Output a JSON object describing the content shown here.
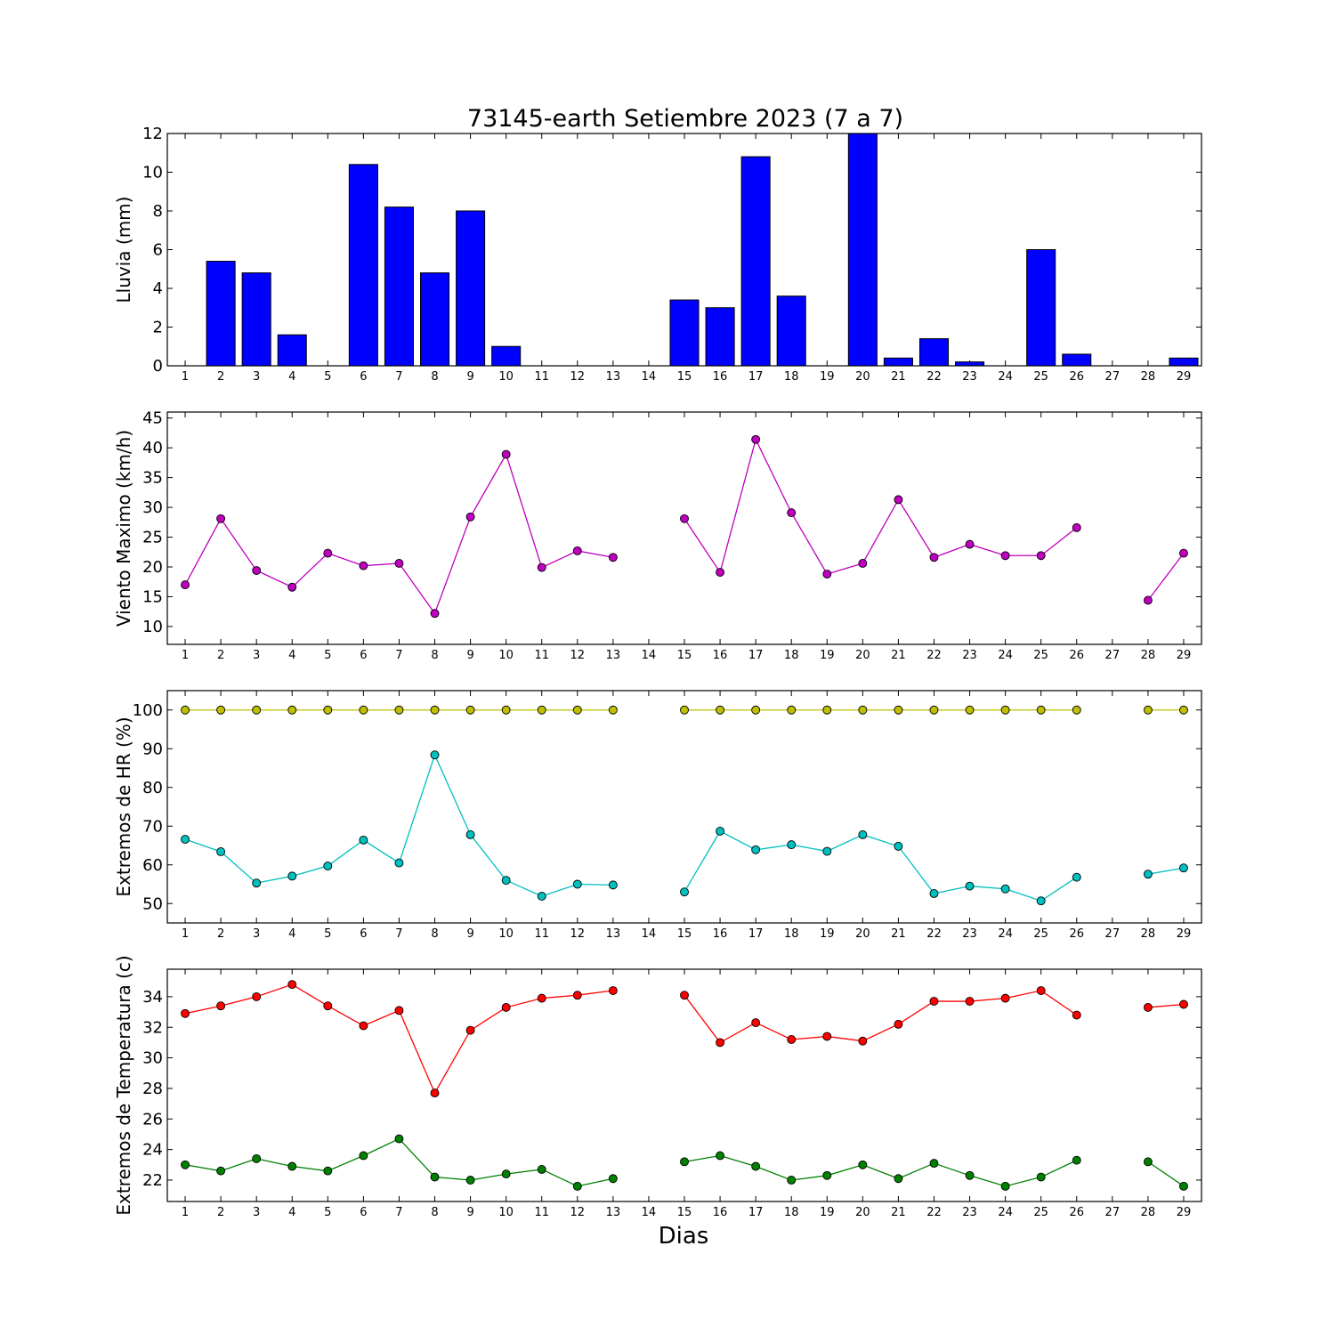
{
  "title": "73145-earth Setiembre 2023  (7 a 7)",
  "xlabel": "Dias",
  "chart_data": [
    {
      "type": "bar",
      "ylabel": "Lluvia (mm)",
      "ylim": [
        0,
        12
      ],
      "yticks": [
        0,
        2,
        4,
        6,
        8,
        10,
        12
      ],
      "x": [
        1,
        2,
        3,
        4,
        5,
        6,
        7,
        8,
        9,
        10,
        11,
        12,
        13,
        14,
        15,
        16,
        17,
        18,
        19,
        20,
        21,
        22,
        23,
        24,
        25,
        26,
        27,
        28,
        29
      ],
      "xtick_labels": [
        "1",
        "2",
        "3",
        "4",
        "5",
        "6",
        "7",
        "8",
        "9",
        "10",
        "11",
        "12",
        "13",
        "14",
        "15",
        "16",
        "17",
        "18",
        "19",
        "20",
        "21",
        "22",
        "23",
        "24",
        "25",
        "26",
        "27",
        "28",
        "29"
      ],
      "series": [
        {
          "color": "#0000ff",
          "values": [
            0,
            5.4,
            4.8,
            1.6,
            0,
            10.4,
            8.2,
            4.8,
            8.0,
            1.0,
            0,
            0,
            0,
            0,
            3.4,
            3.0,
            10.8,
            3.6,
            0,
            12.0,
            0.4,
            1.4,
            0.2,
            0,
            6.0,
            0.6,
            0,
            0,
            0.4
          ]
        }
      ]
    },
    {
      "type": "line",
      "ylabel": "Viento Maximo (km/h)",
      "ylim": [
        7,
        46
      ],
      "yticks": [
        10,
        15,
        20,
        25,
        30,
        35,
        40,
        45
      ],
      "x": [
        1,
        2,
        3,
        4,
        5,
        6,
        7,
        8,
        9,
        10,
        11,
        12,
        13,
        14,
        15,
        16,
        17,
        18,
        19,
        20,
        21,
        22,
        23,
        24,
        25,
        26,
        27,
        28,
        29
      ],
      "xtick_labels": [
        "1",
        "2",
        "3",
        "4",
        "5",
        "6",
        "7",
        "8",
        "9",
        "10",
        "11",
        "12",
        "13",
        "14",
        "15",
        "16",
        "17",
        "18",
        "19",
        "20",
        "21",
        "22",
        "23",
        "24",
        "25",
        "26",
        "27",
        "28",
        "29"
      ],
      "series": [
        {
          "color": "#bf00bf",
          "values": [
            17.0,
            28.1,
            19.4,
            16.6,
            22.3,
            20.2,
            20.6,
            12.2,
            28.4,
            38.9,
            19.9,
            22.7,
            21.6,
            null,
            28.1,
            19.1,
            41.4,
            29.1,
            18.8,
            20.6,
            31.3,
            21.6,
            23.8,
            21.9,
            21.9,
            26.6,
            null,
            14.4,
            22.3
          ]
        }
      ]
    },
    {
      "type": "line",
      "ylabel": "Extremos de HR (%)",
      "ylim": [
        45,
        105
      ],
      "yticks": [
        50,
        60,
        70,
        80,
        90,
        100
      ],
      "x": [
        1,
        2,
        3,
        4,
        5,
        6,
        7,
        8,
        9,
        10,
        11,
        12,
        13,
        14,
        15,
        16,
        17,
        18,
        19,
        20,
        21,
        22,
        23,
        24,
        25,
        26,
        27,
        28,
        29
      ],
      "xtick_labels": [
        "1",
        "2",
        "3",
        "4",
        "5",
        "6",
        "7",
        "8",
        "9",
        "10",
        "11",
        "12",
        "13",
        "14",
        "15",
        "16",
        "17",
        "18",
        "19",
        "20",
        "21",
        "22",
        "23",
        "24",
        "25",
        "26",
        "27",
        "28",
        "29"
      ],
      "series": [
        {
          "color": "#bfbf00",
          "values": [
            100,
            100,
            100,
            100,
            100,
            100,
            100,
            100,
            100,
            100,
            100,
            100,
            100,
            null,
            100,
            100,
            100,
            100,
            100,
            100,
            100,
            100,
            100,
            100,
            100,
            100,
            null,
            100,
            100
          ]
        },
        {
          "color": "#00bfbf",
          "values": [
            66.6,
            63.4,
            55.3,
            57.1,
            59.7,
            66.4,
            60.5,
            88.4,
            67.8,
            56.0,
            51.9,
            55.0,
            54.8,
            null,
            53.0,
            68.7,
            63.9,
            65.2,
            63.5,
            67.8,
            64.8,
            52.6,
            54.5,
            53.8,
            50.7,
            56.8,
            null,
            57.6,
            59.2
          ]
        }
      ]
    },
    {
      "type": "line",
      "ylabel": "Extremos de Temperatura (c)",
      "ylim": [
        20.6,
        35.8
      ],
      "yticks": [
        22,
        24,
        26,
        28,
        30,
        32,
        34
      ],
      "x": [
        1,
        2,
        3,
        4,
        5,
        6,
        7,
        8,
        9,
        10,
        11,
        12,
        13,
        14,
        15,
        16,
        17,
        18,
        19,
        20,
        21,
        22,
        23,
        24,
        25,
        26,
        27,
        28,
        29
      ],
      "xtick_labels": [
        "1",
        "2",
        "3",
        "4",
        "5",
        "6",
        "7",
        "8",
        "9",
        "10",
        "11",
        "12",
        "13",
        "14",
        "15",
        "16",
        "17",
        "18",
        "19",
        "20",
        "21",
        "22",
        "23",
        "24",
        "25",
        "26",
        "27",
        "28",
        "29"
      ],
      "series": [
        {
          "color": "#ff0000",
          "values": [
            32.9,
            33.4,
            34.0,
            34.8,
            33.4,
            32.1,
            33.1,
            27.7,
            31.8,
            33.3,
            33.9,
            34.1,
            34.4,
            null,
            34.1,
            31.0,
            32.3,
            31.2,
            31.4,
            31.1,
            32.2,
            33.7,
            33.7,
            33.9,
            34.4,
            32.8,
            null,
            33.3,
            33.5
          ]
        },
        {
          "color": "#008000",
          "values": [
            23.0,
            22.6,
            23.4,
            22.9,
            22.6,
            23.6,
            24.7,
            22.2,
            22.0,
            22.4,
            22.7,
            21.6,
            22.1,
            null,
            23.2,
            23.6,
            22.9,
            22.0,
            22.3,
            23.0,
            22.1,
            23.1,
            22.3,
            21.6,
            22.2,
            23.3,
            null,
            23.2,
            21.6
          ]
        }
      ]
    }
  ]
}
